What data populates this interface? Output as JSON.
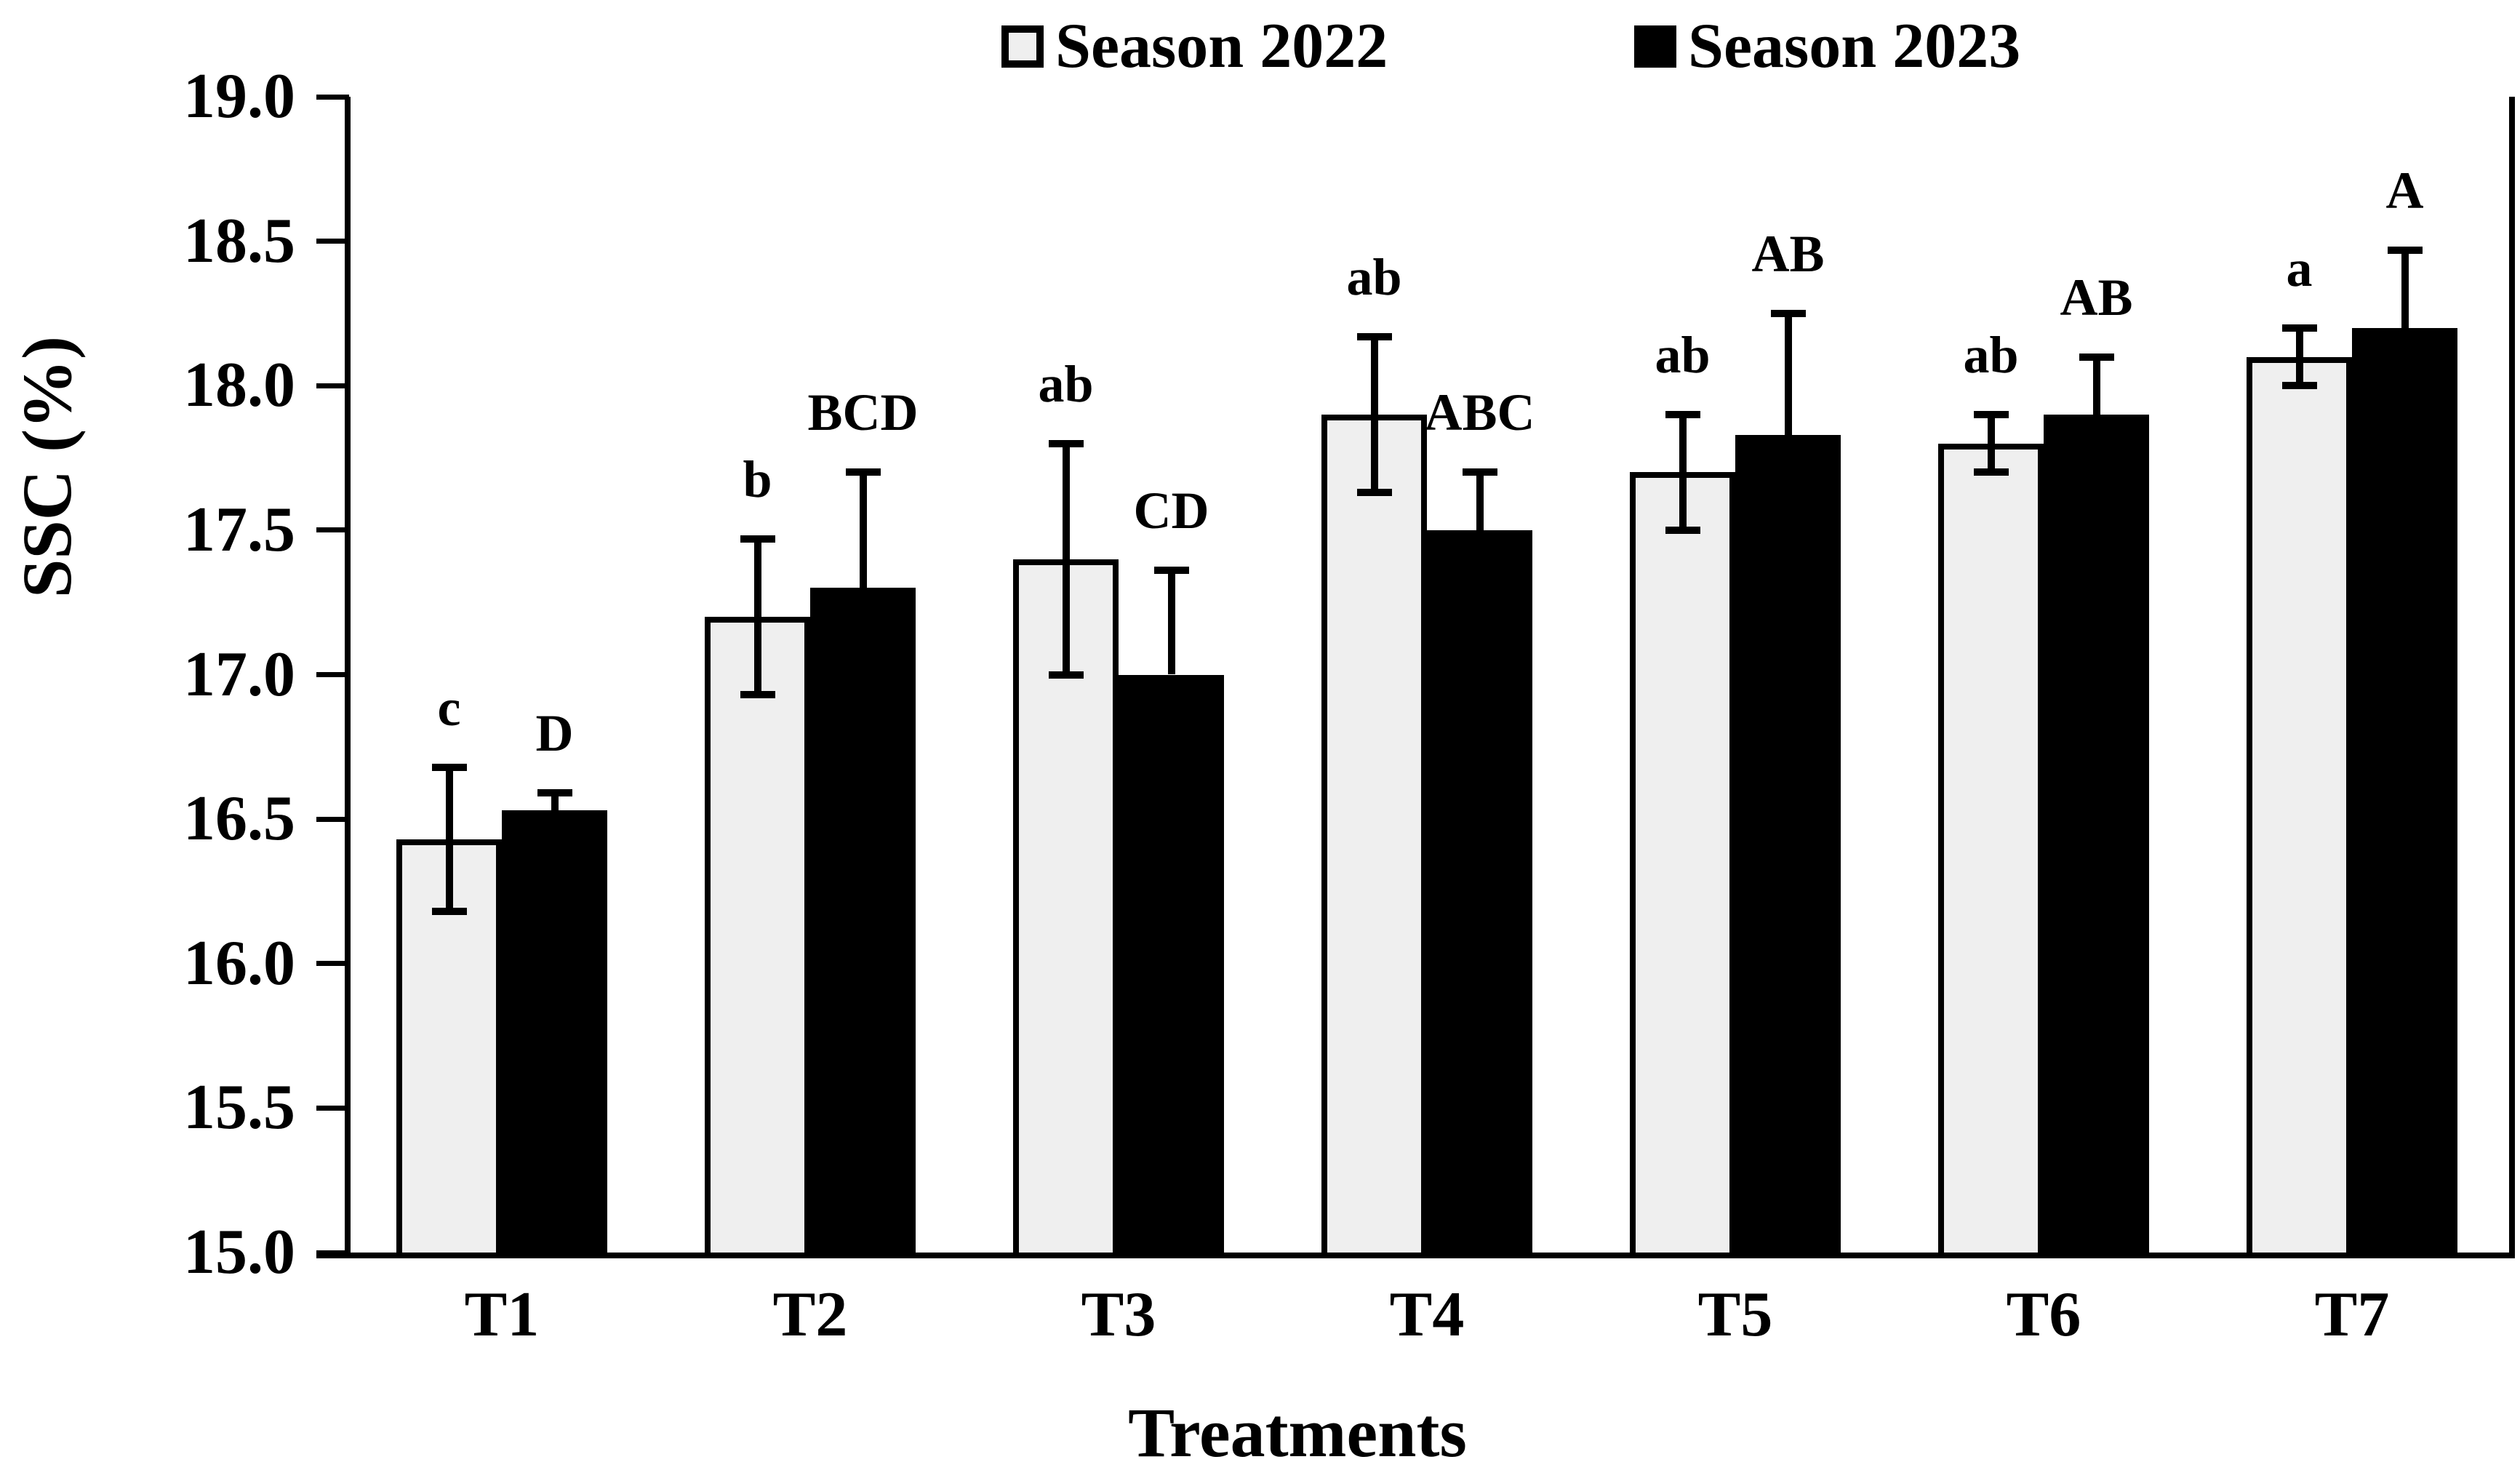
{
  "chart_data": {
    "type": "bar",
    "title": "",
    "xlabel": "Treatments",
    "ylabel": "SSC (%)",
    "categories": [
      "T1",
      "T2",
      "T3",
      "T4",
      "T5",
      "T6",
      "T7"
    ],
    "series": [
      {
        "name": "Season 2022",
        "fill_color": "#efefef",
        "border_color": "#000000",
        "values": [
          16.43,
          17.2,
          17.4,
          17.9,
          17.7,
          17.8,
          18.1
        ],
        "errors": [
          0.25,
          0.27,
          0.4,
          0.27,
          0.2,
          0.1,
          0.1
        ],
        "letters": [
          "c",
          "b",
          "ab",
          "ab",
          "ab",
          "ab",
          "a"
        ]
      },
      {
        "name": "Season 2023",
        "fill_color": "#000000",
        "border_color": "#000000",
        "values": [
          16.53,
          17.3,
          17.0,
          17.5,
          17.83,
          17.9,
          18.2
        ],
        "errors": [
          0.06,
          0.4,
          0.36,
          0.2,
          0.42,
          0.2,
          0.27
        ],
        "letters": [
          "D",
          "BCD",
          "CD",
          "ABC",
          "AB",
          "AB",
          "A"
        ]
      }
    ],
    "ylim": [
      15.0,
      19.0
    ],
    "ytick_step": 0.5,
    "ytick_labels": [
      "15.0",
      "15.5",
      "16.0",
      "16.5",
      "17.0",
      "17.5",
      "18.0",
      "18.5",
      "19.0"
    ],
    "legend_position": "top",
    "grid": false,
    "axis_color": "#000000",
    "background_color": "#ffffff"
  }
}
